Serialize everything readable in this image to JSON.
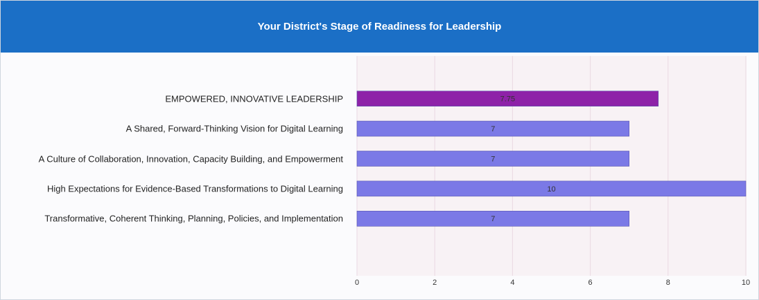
{
  "chart_data": {
    "type": "bar",
    "orientation": "horizontal",
    "title": "Your District's Stage of Readiness for Leadership",
    "categories": [
      "EMPOWERED, INNOVATIVE LEADERSHIP",
      "A Shared, Forward-Thinking Vision for Digital Learning",
      "A Culture of Collaboration, Innovation, Capacity Building, and Empowerment",
      "High Expectations for Evidence-Based Transformations to Digital Learning",
      "Transformative, Coherent Thinking, Planning, Policies, and Implementation"
    ],
    "values": [
      7.75,
      7,
      7,
      10,
      7
    ],
    "colors": [
      "#8e22a8",
      "#7b79e6",
      "#7b79e6",
      "#7b79e6",
      "#7b79e6"
    ],
    "xlim": [
      0,
      10
    ],
    "xticks": [
      0,
      2,
      4,
      6,
      8,
      10
    ],
    "grid": true
  }
}
